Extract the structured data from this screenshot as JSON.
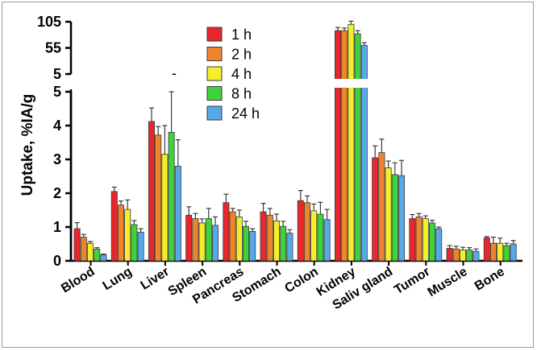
{
  "chart_data": {
    "type": "bar",
    "ylabel": "Uptake, %IA/g",
    "xlabel": "",
    "title": "",
    "categories": [
      "Blood",
      "Lung",
      "Liver",
      "Spleen",
      "Pancreas",
      "Stomach",
      "Colon",
      "Kidney",
      "Saliv gland",
      "Tumor",
      "Muscle",
      "Bone"
    ],
    "y_axis_break": {
      "lower_segment_ylim": [
        0,
        5
      ],
      "lower_segment_ticks": [
        "0",
        "1",
        "2",
        "3",
        "4",
        "5"
      ],
      "upper_segment_ylim": [
        5,
        105
      ],
      "upper_segment_ticks": [
        "5",
        "55",
        "105"
      ]
    },
    "legend_placement": "top-center",
    "series": [
      {
        "name": "1 h",
        "color": "#e8262b",
        "values": [
          0.95,
          2.05,
          4.12,
          1.35,
          1.72,
          1.45,
          1.78,
          88,
          3.05,
          1.25,
          0.37,
          0.68
        ],
        "errors": [
          0.18,
          0.13,
          0.4,
          0.25,
          0.25,
          0.25,
          0.3,
          6,
          0.35,
          0.12,
          0.08,
          0.04
        ]
      },
      {
        "name": "2 h",
        "color": "#f0842a",
        "values": [
          0.7,
          1.65,
          3.72,
          1.25,
          1.45,
          1.35,
          1.72,
          88,
          3.2,
          1.3,
          0.35,
          0.52
        ],
        "errors": [
          0.08,
          0.12,
          0.25,
          0.15,
          0.1,
          0.2,
          0.2,
          5,
          0.4,
          0.1,
          0.08,
          0.18
        ]
      },
      {
        "name": "4 h",
        "color": "#f4ef2a",
        "values": [
          0.52,
          1.52,
          3.15,
          1.12,
          1.3,
          1.18,
          1.48,
          100,
          2.75,
          1.25,
          0.32,
          0.52
        ],
        "errors": [
          0.05,
          0.28,
          0.85,
          0.12,
          0.2,
          0.2,
          0.2,
          6,
          0.2,
          0.08,
          0.08,
          0.15
        ]
      },
      {
        "name": "8 h",
        "color": "#3fd23a",
        "values": [
          0.35,
          1.07,
          3.8,
          1.25,
          1.02,
          1.02,
          1.38,
          82,
          2.55,
          1.12,
          0.32,
          0.45
        ],
        "errors": [
          0.04,
          0.12,
          1.2,
          0.3,
          0.15,
          0.15,
          0.35,
          6,
          0.35,
          0.08,
          0.07,
          0.07
        ]
      },
      {
        "name": "24 h",
        "color": "#58a8e8",
        "values": [
          0.18,
          0.85,
          2.8,
          1.05,
          0.87,
          0.82,
          1.22,
          60,
          2.52,
          0.95,
          0.28,
          0.5
        ],
        "errors": [
          0.02,
          0.1,
          0.78,
          0.25,
          0.08,
          0.1,
          0.3,
          5,
          0.45,
          0.05,
          0.07,
          0.1
        ]
      }
    ],
    "grid": false,
    "misc_marks": [
      "-"
    ]
  }
}
